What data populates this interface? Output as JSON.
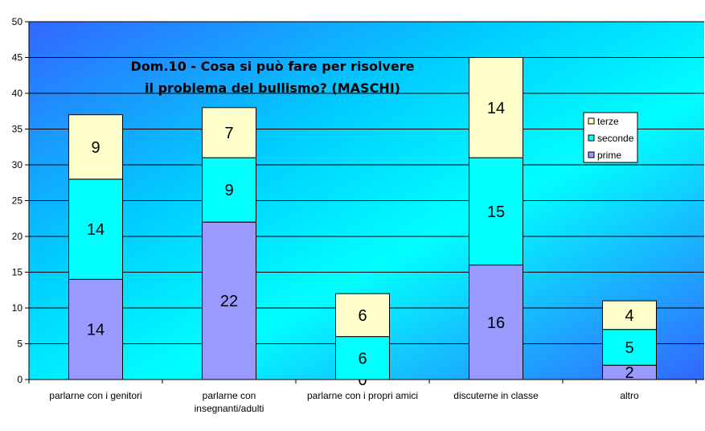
{
  "chart_data": {
    "type": "bar",
    "stacked": true,
    "title_lines": [
      "Dom.10 - Cosa si può fare per risolvere",
      "il problema del bullismo? (MASCHI)"
    ],
    "categories": [
      [
        "parlarne con i genitori"
      ],
      [
        "parlarne con",
        "insegnanti/adulti"
      ],
      [
        "parlarne con i propri amici"
      ],
      [
        "discuterne in classe"
      ],
      [
        "altro"
      ]
    ],
    "series": [
      {
        "name": "prime",
        "values": [
          14,
          22,
          0,
          16,
          2
        ],
        "color": "#9999ff"
      },
      {
        "name": "seconde",
        "values": [
          14,
          9,
          6,
          15,
          5
        ],
        "color": "#00ffff"
      },
      {
        "name": "terze",
        "values": [
          9,
          7,
          6,
          14,
          4
        ],
        "color": "#ffffcc"
      }
    ],
    "legend_order": [
      "terze",
      "seconde",
      "prime"
    ],
    "legend_position": "right",
    "ylim": [
      0,
      50
    ],
    "yticks": [
      0,
      5,
      10,
      15,
      20,
      25,
      30,
      35,
      40,
      45,
      50
    ],
    "grid": true,
    "plot_background": [
      "#3366ff",
      "#00ffff"
    ]
  }
}
